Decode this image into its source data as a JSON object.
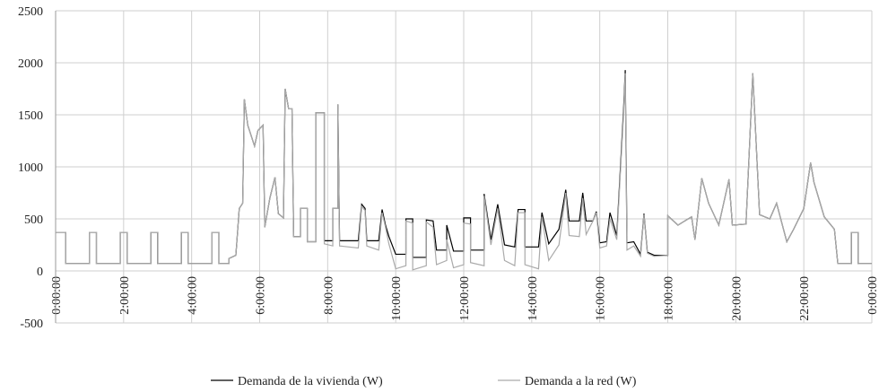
{
  "chart_data": {
    "type": "line",
    "x": [
      0,
      0.3,
      0.3,
      1.0,
      1.0,
      1.2,
      1.2,
      1.9,
      1.9,
      2.1,
      2.1,
      2.8,
      2.8,
      3.0,
      3.0,
      3.7,
      3.7,
      3.9,
      3.9,
      4.6,
      4.6,
      4.8,
      4.8,
      5.1,
      5.1,
      5.3,
      5.4,
      5.5,
      5.55,
      5.65,
      5.85,
      5.95,
      6.1,
      6.15,
      6.3,
      6.45,
      6.55,
      6.7,
      6.75,
      6.85,
      6.95,
      7.0,
      7.2,
      7.2,
      7.4,
      7.4,
      7.65,
      7.65,
      7.9,
      7.9,
      8.15,
      8.15,
      8.3,
      8.3,
      8.35,
      8.9,
      9.0,
      9.1,
      9.15,
      9.5,
      9.6,
      9.7,
      9.8,
      10.0,
      10.3,
      10.3,
      10.5,
      10.5,
      10.9,
      10.9,
      11.1,
      11.2,
      11.5,
      11.5,
      11.7,
      12.0,
      12.0,
      12.2,
      12.2,
      12.6,
      12.6,
      12.8,
      13.0,
      13.2,
      13.5,
      13.6,
      13.8,
      13.8,
      14.2,
      14.3,
      14.5,
      14.8,
      15.0,
      15.1,
      15.4,
      15.5,
      15.6,
      15.8,
      15.9,
      16.0,
      16.2,
      16.3,
      16.5,
      16.7,
      16.75,
      16.8,
      17.0,
      17.2,
      17.3,
      17.4,
      17.6,
      18.0,
      18.0,
      18.3,
      18.7,
      18.8,
      19.0,
      19.2,
      19.5,
      19.8,
      19.9,
      20.3,
      20.5,
      20.7,
      21.0,
      21.2,
      21.5,
      21.7,
      22.0,
      22.2,
      22.3,
      22.6,
      22.9,
      23.0,
      23.4,
      23.4,
      23.6,
      23.6,
      24.0
    ],
    "series": [
      {
        "name": "Demanda de la vivienda (W)",
        "color": "#000000",
        "values": [
          370,
          370,
          70,
          70,
          370,
          370,
          70,
          70,
          370,
          370,
          70,
          70,
          370,
          370,
          70,
          70,
          370,
          370,
          70,
          70,
          370,
          370,
          70,
          70,
          120,
          150,
          600,
          650,
          1650,
          1400,
          1200,
          1350,
          1400,
          420,
          700,
          900,
          550,
          510,
          1750,
          1560,
          1560,
          330,
          330,
          600,
          600,
          280,
          280,
          1520,
          1520,
          290,
          290,
          600,
          600,
          1600,
          290,
          290,
          640,
          600,
          290,
          290,
          590,
          440,
          330,
          160,
          160,
          500,
          500,
          130,
          130,
          490,
          480,
          200,
          200,
          440,
          190,
          190,
          510,
          510,
          200,
          200,
          740,
          300,
          640,
          250,
          230,
          590,
          590,
          230,
          230,
          560,
          260,
          400,
          780,
          480,
          480,
          750,
          480,
          480,
          570,
          270,
          280,
          560,
          340,
          1550,
          1930,
          270,
          280,
          160,
          550,
          180,
          150,
          150,
          530,
          440,
          520,
          300,
          890,
          650,
          440,
          880,
          440,
          450,
          1900,
          540,
          500,
          650,
          280,
          400,
          600,
          1040,
          850,
          520,
          400,
          70,
          70,
          370,
          370,
          70,
          70
        ]
      },
      {
        "name": "Demanda a la red (W)",
        "color": "#aaaaaa",
        "values": [
          370,
          370,
          70,
          70,
          370,
          370,
          70,
          70,
          370,
          370,
          70,
          70,
          370,
          370,
          70,
          70,
          370,
          370,
          70,
          70,
          370,
          370,
          70,
          70,
          120,
          150,
          600,
          650,
          1650,
          1400,
          1200,
          1350,
          1400,
          420,
          700,
          900,
          550,
          510,
          1750,
          1560,
          1560,
          330,
          330,
          600,
          600,
          280,
          280,
          1520,
          1520,
          260,
          240,
          600,
          600,
          1600,
          240,
          220,
          620,
          580,
          240,
          200,
          560,
          420,
          260,
          20,
          50,
          480,
          460,
          10,
          50,
          470,
          420,
          60,
          100,
          300,
          30,
          60,
          460,
          450,
          80,
          50,
          720,
          250,
          600,
          100,
          50,
          560,
          560,
          60,
          20,
          520,
          100,
          250,
          750,
          340,
          330,
          700,
          350,
          480,
          560,
          220,
          240,
          500,
          300,
          1500,
          1900,
          200,
          240,
          140,
          540,
          170,
          140,
          150,
          530,
          440,
          520,
          300,
          890,
          650,
          440,
          880,
          440,
          450,
          1900,
          540,
          500,
          650,
          280,
          400,
          600,
          1040,
          850,
          520,
          400,
          70,
          70,
          370,
          370,
          70,
          70
        ]
      }
    ],
    "xlim": [
      0,
      24
    ],
    "xticks": [
      {
        "value": 0,
        "label": "0:00:00"
      },
      {
        "value": 2,
        "label": "2:00:00"
      },
      {
        "value": 4,
        "label": "4:00:00"
      },
      {
        "value": 6,
        "label": "6:00:00"
      },
      {
        "value": 8,
        "label": "8:00:00"
      },
      {
        "value": 10,
        "label": "10:00:00"
      },
      {
        "value": 12,
        "label": "12:00:00"
      },
      {
        "value": 14,
        "label": "14:00:00"
      },
      {
        "value": 16,
        "label": "16:00:00"
      },
      {
        "value": 18,
        "label": "18:00:00"
      },
      {
        "value": 20,
        "label": "20:00:00"
      },
      {
        "value": 22,
        "label": "22:00:00"
      },
      {
        "value": 24,
        "label": "0:00:00"
      }
    ],
    "ylim": [
      -500,
      2500
    ],
    "yticks": [
      -500,
      0,
      500,
      1000,
      1500,
      2000,
      2500
    ],
    "grid": true,
    "legend": "bottom"
  }
}
